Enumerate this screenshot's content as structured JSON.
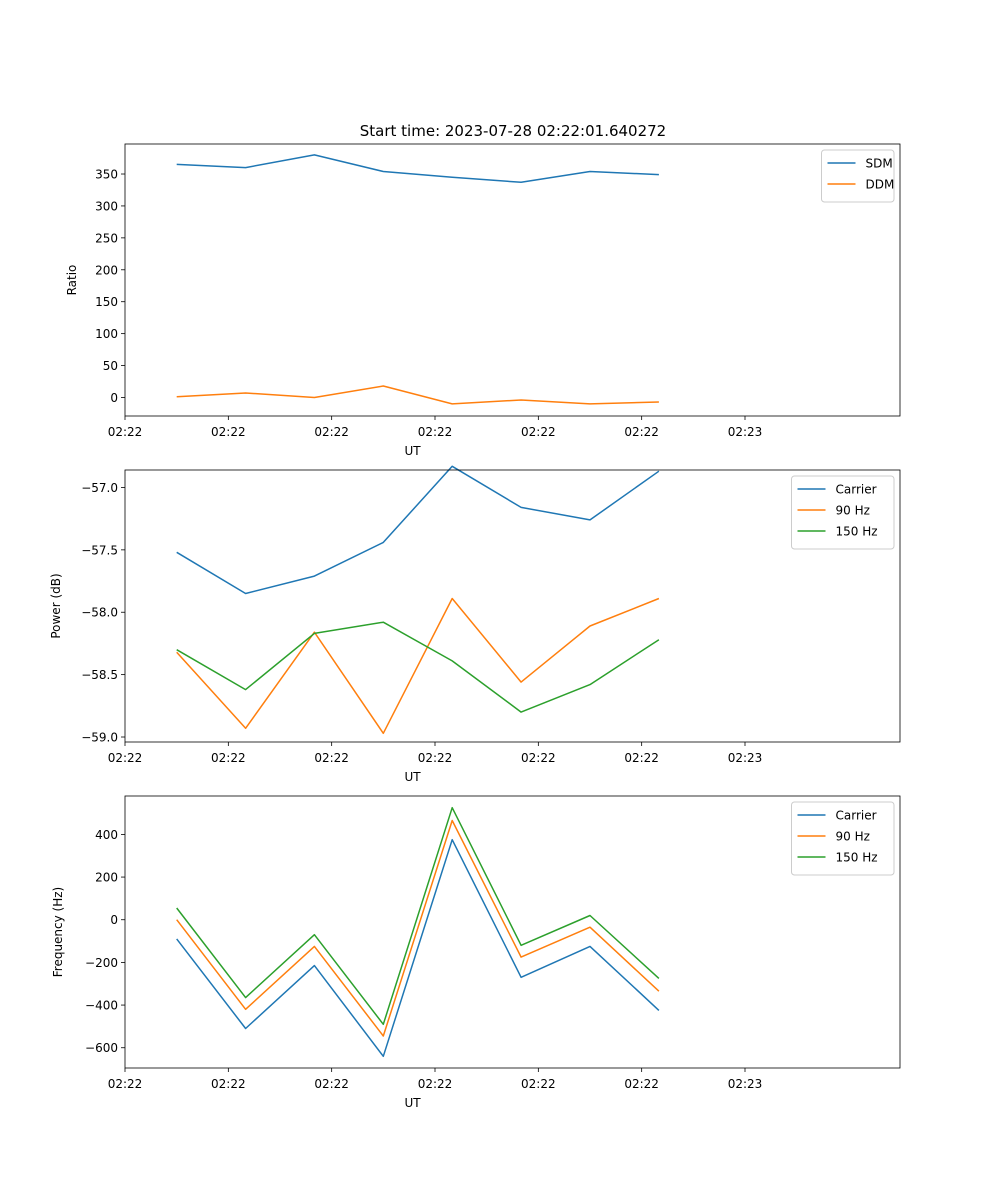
{
  "figure_title": "Start time: 2023-07-28 02:22:01.640272",
  "colors": {
    "blue": "#1f77b4",
    "orange": "#ff7f0e",
    "green": "#2ca02c"
  },
  "chart_data": [
    {
      "type": "line",
      "title": "Start time: 2023-07-28 02:22:01.640272",
      "xlabel": "UT",
      "ylabel": "Ratio",
      "xlim": [
        0,
        9.0
      ],
      "ylim": [
        -29,
        397
      ],
      "x_ticks": [
        0,
        1.2,
        2.4,
        3.6,
        4.8,
        6.0,
        7.2
      ],
      "x_tick_labels": [
        "02:22",
        "02:22",
        "02:22",
        "02:22",
        "02:22",
        "02:22",
        "02:23"
      ],
      "y_ticks": [
        0,
        50,
        100,
        150,
        200,
        250,
        300,
        350
      ],
      "y_tick_labels": [
        "0",
        "50",
        "100",
        "150",
        "200",
        "250",
        "300",
        "350"
      ],
      "legend_position": "upper right",
      "x": [
        0.6,
        1.4,
        2.2,
        3.0,
        3.8,
        4.6,
        5.4,
        6.2
      ],
      "series": [
        {
          "name": "SDM",
          "color": "#1f77b4",
          "values": [
            365,
            360,
            380,
            354,
            345,
            337,
            354,
            349
          ]
        },
        {
          "name": "DDM",
          "color": "#ff7f0e",
          "values": [
            1,
            7,
            0,
            18,
            -10,
            -4,
            -10,
            -7
          ]
        }
      ]
    },
    {
      "type": "line",
      "title": "",
      "xlabel": "UT",
      "ylabel": "Power (dB)",
      "xlim": [
        0,
        9.0
      ],
      "ylim": [
        -59.04,
        -56.86
      ],
      "x_ticks": [
        0,
        1.2,
        2.4,
        3.6,
        4.8,
        6.0,
        7.2
      ],
      "x_tick_labels": [
        "02:22",
        "02:22",
        "02:22",
        "02:22",
        "02:22",
        "02:22",
        "02:23"
      ],
      "y_ticks": [
        -59.0,
        -58.5,
        -58.0,
        -57.5,
        -57.0
      ],
      "y_tick_labels": [
        "−59.0",
        "−58.5",
        "−58.0",
        "−57.5",
        "−57.0"
      ],
      "legend_position": "upper right",
      "x": [
        0.6,
        1.4,
        2.2,
        3.0,
        3.8,
        4.6,
        5.4,
        6.2
      ],
      "series": [
        {
          "name": "Carrier",
          "color": "#1f77b4",
          "values": [
            -57.52,
            -57.85,
            -57.71,
            -57.44,
            -56.83,
            -57.16,
            -57.26,
            -56.87
          ]
        },
        {
          "name": "90 Hz",
          "color": "#ff7f0e",
          "values": [
            -58.32,
            -58.93,
            -58.16,
            -58.97,
            -57.89,
            -58.56,
            -58.11,
            -57.89
          ]
        },
        {
          "name": "150 Hz",
          "color": "#2ca02c",
          "values": [
            -58.3,
            -58.62,
            -58.17,
            -58.08,
            -58.39,
            -58.8,
            -58.58,
            -58.22
          ]
        }
      ]
    },
    {
      "type": "line",
      "title": "",
      "xlabel": "UT",
      "ylabel": "Frequency (Hz)",
      "xlim": [
        0,
        9.0
      ],
      "ylim": [
        -695,
        580
      ],
      "x_ticks": [
        0,
        1.2,
        2.4,
        3.6,
        4.8,
        6.0,
        7.2
      ],
      "x_tick_labels": [
        "02:22",
        "02:22",
        "02:22",
        "02:22",
        "02:22",
        "02:22",
        "02:23"
      ],
      "y_ticks": [
        -600,
        -400,
        -200,
        0,
        200,
        400
      ],
      "y_tick_labels": [
        "−600",
        "−400",
        "−200",
        "0",
        "200",
        "400"
      ],
      "legend_position": "upper right",
      "x": [
        0.6,
        1.4,
        2.2,
        3.0,
        3.8,
        4.6,
        5.4,
        6.2
      ],
      "series": [
        {
          "name": "Carrier",
          "color": "#1f77b4",
          "values": [
            -90,
            -510,
            -215,
            -640,
            375,
            -270,
            -125,
            -425
          ]
        },
        {
          "name": "90 Hz",
          "color": "#ff7f0e",
          "values": [
            0,
            -420,
            -125,
            -545,
            465,
            -175,
            -35,
            -335
          ]
        },
        {
          "name": "150 Hz",
          "color": "#2ca02c",
          "values": [
            55,
            -365,
            -70,
            -490,
            525,
            -120,
            20,
            -275
          ]
        }
      ]
    }
  ]
}
